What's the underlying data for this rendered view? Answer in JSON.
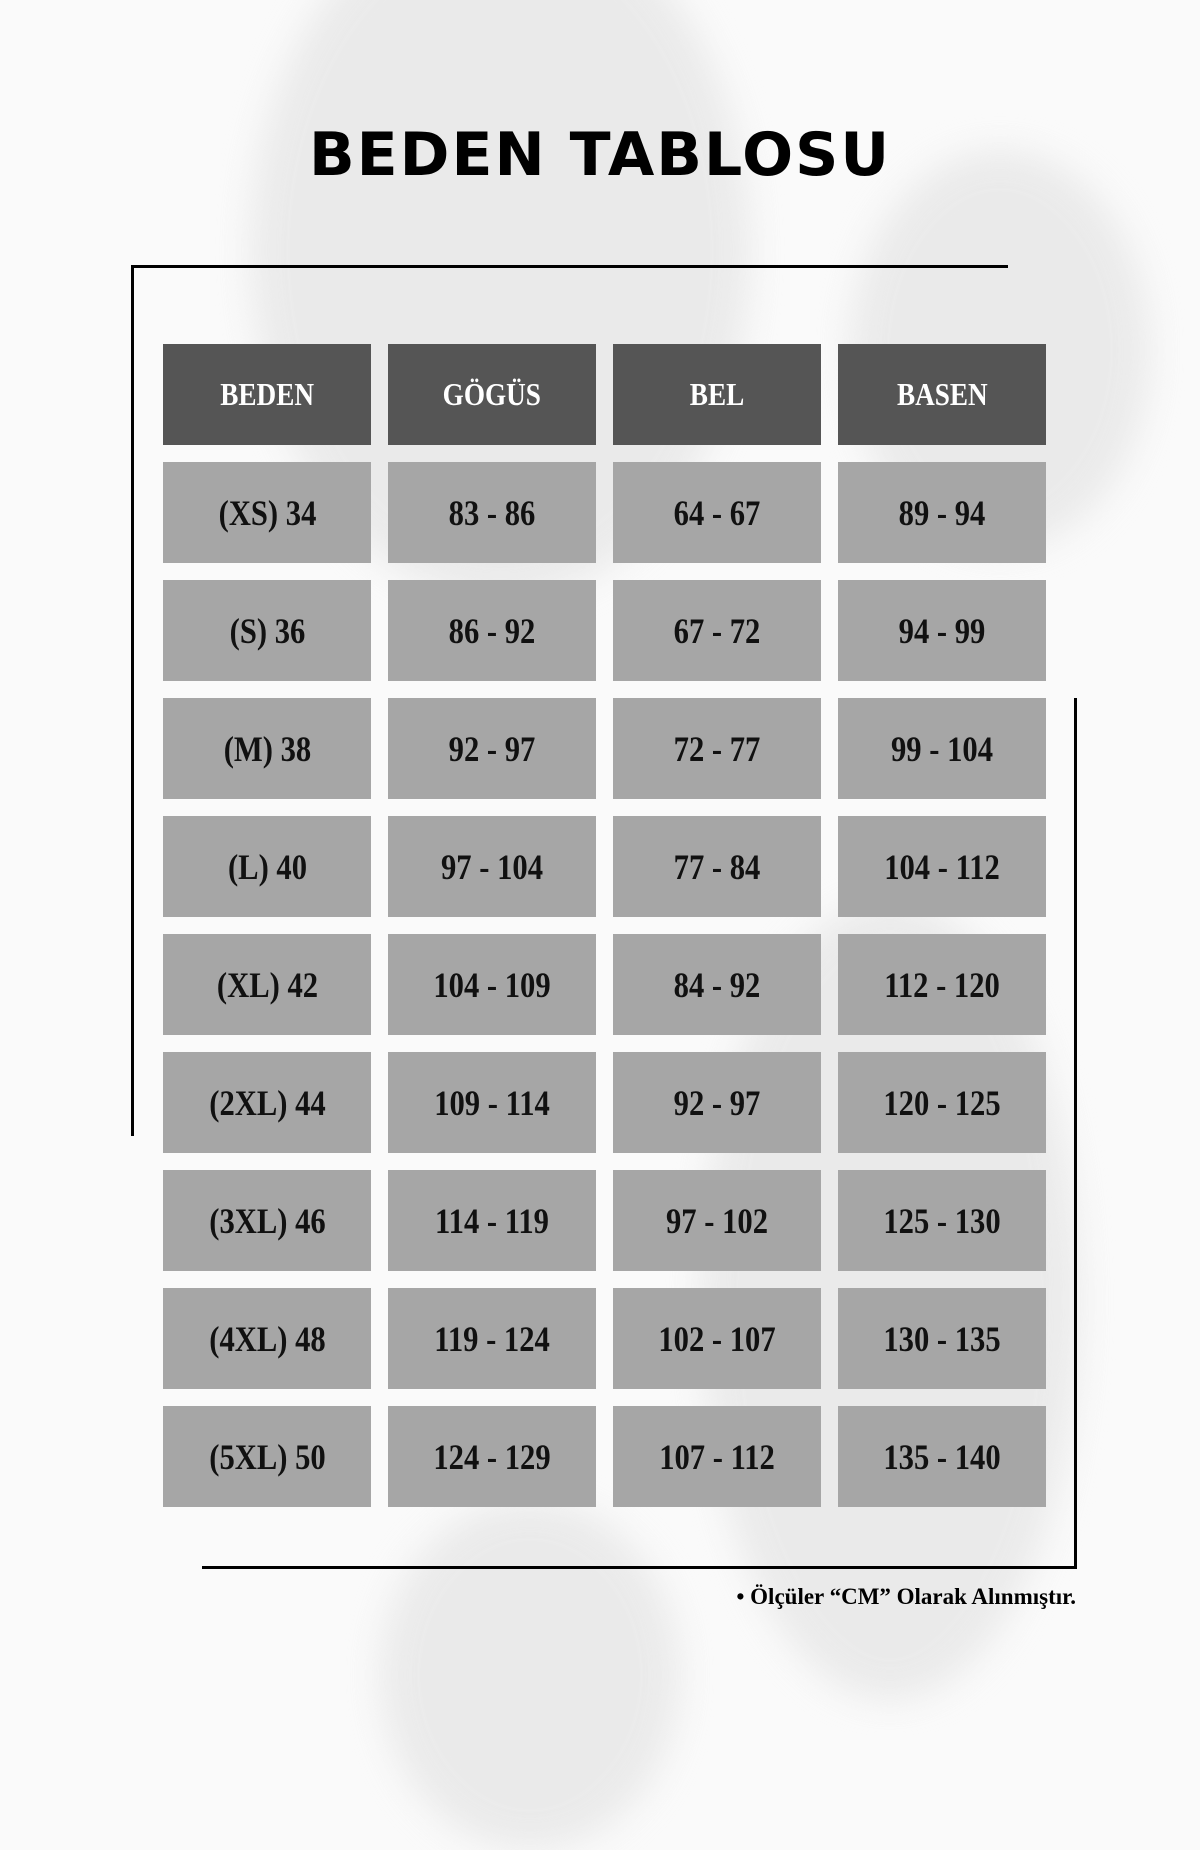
{
  "title": "BEDEN TABLOSU",
  "colors": {
    "header_bg": "#555555",
    "cell_bg": "#a6a6a6"
  },
  "table": {
    "headers": [
      "BEDEN",
      "GÖGÜS",
      "BEL",
      "BASEN"
    ],
    "rows": [
      [
        "(XS) 34",
        "83 - 86",
        "64 - 67",
        "89 - 94"
      ],
      [
        "(S) 36",
        "86 - 92",
        "67 - 72",
        "94 - 99"
      ],
      [
        "(M) 38",
        "92 - 97",
        "72 - 77",
        "99 - 104"
      ],
      [
        "(L) 40",
        "97 - 104",
        "77 - 84",
        "104 - 112"
      ],
      [
        "(XL) 42",
        "104 - 109",
        "84 - 92",
        "112 - 120"
      ],
      [
        "(2XL) 44",
        "109 - 114",
        "92 - 97",
        "120 - 125"
      ],
      [
        "(3XL) 46",
        "114 - 119",
        "97 - 102",
        "125 - 130"
      ],
      [
        "(4XL) 48",
        "119 - 124",
        "102 - 107",
        "130 - 135"
      ],
      [
        "(5XL) 50",
        "124 - 129",
        "107 - 112",
        "135 - 140"
      ]
    ]
  },
  "footnote": "• Ölçüler “CM” Olarak Alınmıştır."
}
